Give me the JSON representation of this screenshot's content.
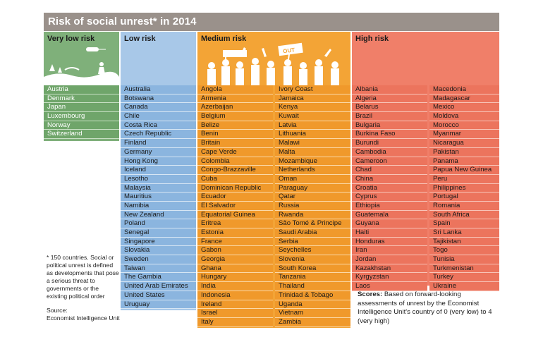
{
  "title": "Risk of social unrest* in 2014",
  "columns": {
    "very_low": {
      "label": "Very low risk",
      "items": [
        "Austria",
        "Denmark",
        "Japan",
        "Luxembourg",
        "Norway",
        "Switzerland"
      ]
    },
    "low": {
      "label": "Low risk",
      "items": [
        "Australia",
        "Botswana",
        "Canada",
        "Chile",
        "Costa Rica",
        "Czech Republic",
        "Finland",
        "Germany",
        "Hong Kong",
        "Iceland",
        "Lesotho",
        "Malaysia",
        "Mauritius",
        "Namibia",
        "New Zealand",
        "Poland",
        "Senegal",
        "Singapore",
        "Slovakia",
        "Sweden",
        "Taiwan",
        "The Gambia",
        "United Arab Emirates",
        "United States",
        "Uruguay"
      ]
    },
    "medium": {
      "label": "Medium risk",
      "sign_text": "OUT",
      "items_left": [
        "Angola",
        "Armenia",
        "Azerbaijan",
        "Belgium",
        "Belize",
        "Benin",
        "Britain",
        "Cape Verde",
        "Colombia",
        "Congo-Brazzaville",
        "Cuba",
        "Dominican Republic",
        "Ecuador",
        "El Salvador",
        "Equatorial Guinea",
        "Eritrea",
        "Estonia",
        "France",
        "Gabon",
        "Georgia",
        "Ghana",
        "Hungary",
        "India",
        "Indonesia",
        "Ireland",
        "Israel",
        "Italy"
      ],
      "items_right": [
        "Ivory Coast",
        "Jamaica",
        "Kenya",
        "Kuwait",
        "Latvia",
        "Lithuania",
        "Malawi",
        "Malta",
        "Mozambique",
        "Netherlands",
        "Oman",
        "Paraguay",
        "Qatar",
        "Russia",
        "Rwanda",
        "São Tomé & Principe",
        "Saudi Arabia",
        "Serbia",
        "Seychelles",
        "Slovenia",
        "South Korea",
        "Tanzania",
        "Thailand",
        "Trinidad & Tobago",
        "Uganda",
        "Vietnam",
        "Zambia"
      ]
    },
    "high": {
      "label": "High risk",
      "items_left": [
        "Albania",
        "Algeria",
        "Belarus",
        "Brazil",
        "Bulgaria",
        "Burkina Faso",
        "Burundi",
        "Cambodia",
        "Cameroon",
        "Chad",
        "China",
        "Croatia",
        "Cyprus",
        "Ethiopia",
        "Guatemala",
        "Guyana",
        "Haiti",
        "Honduras",
        "Iran",
        "Jordan",
        "Kazakhstan",
        "Kyrgyzstan",
        "Laos"
      ],
      "items_right": [
        "Macedonia",
        "Madagascar",
        "Mexico",
        "Moldova",
        "Morocco",
        "Myanmar",
        "Nicaragua",
        "Pakistan",
        "Panama",
        "Papua New Guinea",
        "Peru",
        "Philippines",
        "Portugal",
        "Romania",
        "South Africa",
        "Spain",
        "Sri Lanka",
        "Tajikistan",
        "Togo",
        "Tunisia",
        "Turkmenistan",
        "Turkey",
        "Ukraine"
      ]
    }
  },
  "footnote": "* 150 countries. Social or political unrest is defined as developments that pose a serious threat to governments or the existing political order",
  "source_label": "Source:",
  "source_text": "Economist Intelligence Unit",
  "scores_label": "Scores:",
  "scores_text": "Based on forward-looking assessments of unrest by the Economist Intelligence Unit's country of 0 (very low) to 4 (very high)",
  "colors": {
    "very_low": "#7fb07a",
    "low": "#a8c8e8",
    "medium": "#f3a436",
    "high": "#f07f69",
    "title_bar": "#9a918b"
  }
}
